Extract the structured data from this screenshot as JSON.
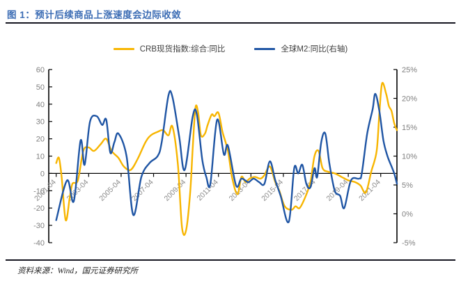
{
  "figure": {
    "title": "图 1：预计后续商品上涨速度会边际收敛",
    "source": "资料来源：Wind，国元证券研究所"
  },
  "colors": {
    "crb_yellow": "#F7B500",
    "m2_blue": "#1F55A4",
    "title_blue": "#3B6CB4",
    "axis_gray": "#808080",
    "axis_line": "#000000"
  },
  "legend": [
    {
      "label": "CRB现货指数:综合:同比",
      "color": "#F7B500"
    },
    {
      "label": "全球M2:同比(右轴)",
      "color": "#1F55A4"
    }
  ],
  "chart_data": {
    "type": "line",
    "title": "图 1：预计后续商品上涨速度会边际收敛",
    "grid": false,
    "legend_position": "top",
    "left_axis": {
      "range": [
        -40,
        60
      ],
      "ticks": [
        60,
        50,
        40,
        30,
        20,
        10,
        0,
        -10,
        -20,
        -30,
        -40
      ]
    },
    "right_axis": {
      "range_percent": [
        -5,
        25
      ],
      "ticks": [
        "25%",
        "20%",
        "15%",
        "10%",
        "5%",
        "0%",
        "-5%"
      ]
    },
    "x_ticks": [
      "2001-04",
      "2003-04",
      "2005-04",
      "2007-04",
      "2009-04",
      "2011-04",
      "2013-04",
      "2015-04",
      "2017-04",
      "2019-04",
      "2021-04"
    ],
    "series": [
      {
        "name": "CRB现货指数:综合:同比",
        "axis": "left",
        "color": "#F7B500",
        "points": [
          [
            "2001-04",
            6
          ],
          [
            "2001-06",
            9
          ],
          [
            "2001-08",
            -2
          ],
          [
            "2001-11",
            -27
          ],
          [
            "2002-02",
            -14
          ],
          [
            "2002-04",
            -6
          ],
          [
            "2002-08",
            -4
          ],
          [
            "2002-12",
            13
          ],
          [
            "2003-04",
            15
          ],
          [
            "2003-08",
            13
          ],
          [
            "2004-01",
            17
          ],
          [
            "2004-05",
            20
          ],
          [
            "2004-09",
            13
          ],
          [
            "2005-02",
            9
          ],
          [
            "2005-06",
            4
          ],
          [
            "2005-11",
            2
          ],
          [
            "2006-04",
            8
          ],
          [
            "2006-10",
            18
          ],
          [
            "2007-02",
            22
          ],
          [
            "2007-07",
            24
          ],
          [
            "2007-11",
            25
          ],
          [
            "2008-03",
            22
          ],
          [
            "2008-06",
            27
          ],
          [
            "2008-10",
            5
          ],
          [
            "2009-01",
            -31
          ],
          [
            "2009-04",
            -33
          ],
          [
            "2009-07",
            -12
          ],
          [
            "2009-09",
            15
          ],
          [
            "2009-11",
            38
          ],
          [
            "2010-01",
            35
          ],
          [
            "2010-03",
            22
          ],
          [
            "2010-06",
            23
          ],
          [
            "2010-08",
            28
          ],
          [
            "2010-11",
            34
          ],
          [
            "2011-01",
            33
          ],
          [
            "2011-04",
            35
          ],
          [
            "2011-07",
            24
          ],
          [
            "2011-11",
            13
          ],
          [
            "2012-02",
            -2
          ],
          [
            "2012-06",
            -12
          ],
          [
            "2012-09",
            -2
          ],
          [
            "2012-12",
            -5
          ],
          [
            "2013-03",
            -3
          ],
          [
            "2013-07",
            -2
          ],
          [
            "2013-11",
            -3
          ],
          [
            "2014-02",
            -1
          ],
          [
            "2014-06",
            4
          ],
          [
            "2014-10",
            -5
          ],
          [
            "2015-01",
            -10
          ],
          [
            "2015-05",
            -19
          ],
          [
            "2015-10",
            -21
          ],
          [
            "2016-01",
            -19
          ],
          [
            "2016-04",
            -20
          ],
          [
            "2016-08",
            -14
          ],
          [
            "2016-12",
            -5
          ],
          [
            "2017-03",
            10
          ],
          [
            "2017-06",
            13
          ],
          [
            "2017-09",
            3
          ],
          [
            "2018-01",
            1
          ],
          [
            "2018-06",
            0
          ],
          [
            "2018-11",
            -2
          ],
          [
            "2019-04",
            -4
          ],
          [
            "2019-09",
            -5
          ],
          [
            "2020-01",
            -7
          ],
          [
            "2020-05",
            -11
          ],
          [
            "2020-09",
            1
          ],
          [
            "2021-01",
            13
          ],
          [
            "2021-03",
            35
          ],
          [
            "2021-05",
            52
          ],
          [
            "2021-08",
            46
          ],
          [
            "2021-10",
            39
          ],
          [
            "2021-12",
            36
          ],
          [
            "2022-02",
            29
          ],
          [
            "2022-04",
            25
          ]
        ]
      },
      {
        "name": "全球M2:同比(右轴)",
        "axis": "right",
        "color": "#1F55A4",
        "points": [
          [
            "2001-04",
            -1.1
          ],
          [
            "2001-12",
            5.8
          ],
          [
            "2002-05",
            2.2
          ],
          [
            "2002-10",
            12.7
          ],
          [
            "2003-01",
            8.5
          ],
          [
            "2003-05",
            16.0
          ],
          [
            "2003-10",
            16.9
          ],
          [
            "2004-02",
            15.4
          ],
          [
            "2004-05",
            16.3
          ],
          [
            "2004-08",
            10.6
          ],
          [
            "2004-11",
            12.4
          ],
          [
            "2005-02",
            13.9
          ],
          [
            "2005-08",
            10.0
          ],
          [
            "2006-01",
            -0.2
          ],
          [
            "2006-07",
            6.4
          ],
          [
            "2007-01",
            8.8
          ],
          [
            "2007-07",
            10.0
          ],
          [
            "2007-10",
            12.4
          ],
          [
            "2008-03",
            20.5
          ],
          [
            "2008-06",
            20.2
          ],
          [
            "2008-11",
            13.3
          ],
          [
            "2009-03",
            7.6
          ],
          [
            "2009-09",
            16.9
          ],
          [
            "2009-12",
            17.2
          ],
          [
            "2010-04",
            9.4
          ],
          [
            "2010-07",
            6.4
          ],
          [
            "2010-10",
            5.2
          ],
          [
            "2011-03",
            16.3
          ],
          [
            "2011-08",
            10.3
          ],
          [
            "2011-11",
            11.8
          ],
          [
            "2012-05",
            4.9
          ],
          [
            "2012-09",
            6.1
          ],
          [
            "2013-02",
            5.5
          ],
          [
            "2013-06",
            6.1
          ],
          [
            "2013-10",
            5.5
          ],
          [
            "2014-02",
            5.2
          ],
          [
            "2014-06",
            9.1
          ],
          [
            "2014-10",
            5.8
          ],
          [
            "2015-02",
            3.1
          ],
          [
            "2015-08",
            -1.4
          ],
          [
            "2015-12",
            7.9
          ],
          [
            "2016-03",
            7.0
          ],
          [
            "2016-06",
            8.5
          ],
          [
            "2016-09",
            5.2
          ],
          [
            "2016-12",
            4.6
          ],
          [
            "2017-03",
            7.9
          ],
          [
            "2017-05",
            6.4
          ],
          [
            "2017-08",
            12.4
          ],
          [
            "2017-11",
            13.9
          ],
          [
            "2018-02",
            8.8
          ],
          [
            "2018-06",
            4.0
          ],
          [
            "2018-10",
            3.1
          ],
          [
            "2019-01",
            1.0
          ],
          [
            "2019-06",
            5.8
          ],
          [
            "2019-12",
            6.1
          ],
          [
            "2020-02",
            7.0
          ],
          [
            "2020-06",
            13.9
          ],
          [
            "2020-10",
            18.1
          ],
          [
            "2020-12",
            20.8
          ],
          [
            "2021-03",
            17.8
          ],
          [
            "2021-06",
            12.7
          ],
          [
            "2021-09",
            10.0
          ],
          [
            "2021-12",
            8.2
          ],
          [
            "2022-02",
            7.0
          ],
          [
            "2022-04",
            5.2
          ]
        ]
      }
    ]
  }
}
